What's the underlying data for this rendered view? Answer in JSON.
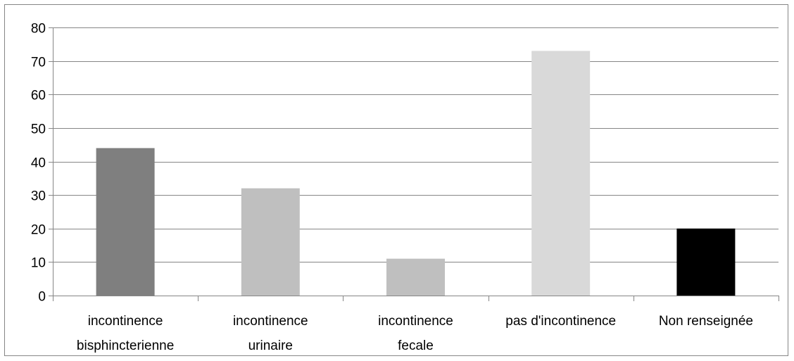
{
  "chart_data": {
    "type": "bar",
    "title": "",
    "xlabel": "",
    "ylabel": "",
    "categories": [
      [
        "incontinence",
        "bisphincterienne"
      ],
      [
        "incontinence",
        "urinaire"
      ],
      [
        "incontinence",
        "fecale"
      ],
      [
        "pas d'incontinence"
      ],
      [
        "Non renseignée"
      ]
    ],
    "values": [
      44,
      32,
      11,
      73,
      20
    ],
    "bar_colors": [
      "#7f7f7f",
      "#bfbfbf",
      "#bfbfbf",
      "#d9d9d9",
      "#000000"
    ],
    "ylim": [
      0,
      80
    ],
    "yticks": [
      0,
      10,
      20,
      30,
      40,
      50,
      60,
      70,
      80
    ],
    "grid": true,
    "legend": "none"
  },
  "colors": {
    "grid": "#868686",
    "frame": "#868686"
  }
}
